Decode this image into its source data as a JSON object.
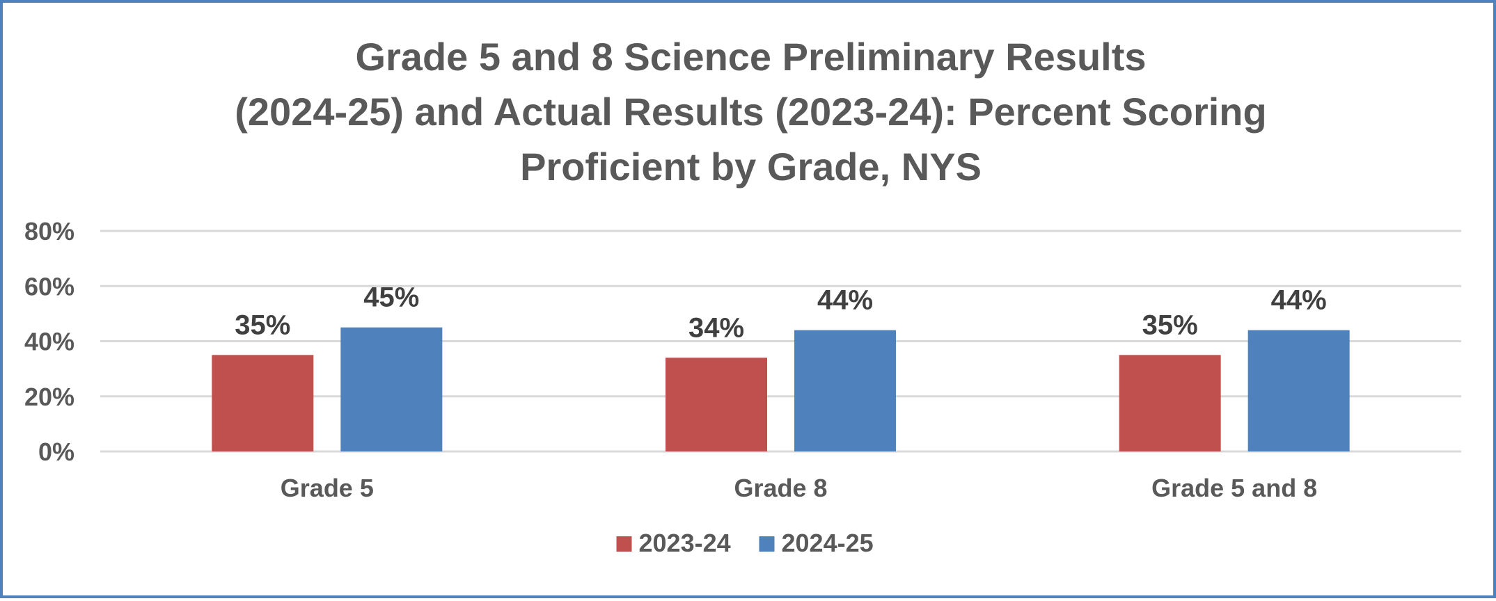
{
  "chart_data": {
    "type": "bar",
    "title_lines": [
      "Grade 5 and 8 Science Preliminary Results",
      "(2024-25) and Actual Results (2023-24): Percent Scoring",
      "Proficient by Grade, NYS"
    ],
    "categories": [
      "Grade 5",
      "Grade 8",
      "Grade 5 and 8"
    ],
    "series": [
      {
        "name": "2023-24",
        "color": "#c0504d",
        "values": [
          35,
          34,
          35
        ],
        "labels": [
          "35%",
          "34%",
          "35%"
        ]
      },
      {
        "name": "2024-25",
        "color": "#4f81bd",
        "values": [
          45,
          44,
          44
        ],
        "labels": [
          "45%",
          "44%",
          "44%"
        ]
      }
    ],
    "yticks": [
      {
        "value": 0,
        "label": "0%"
      },
      {
        "value": 20,
        "label": "20%"
      },
      {
        "value": 40,
        "label": "40%"
      },
      {
        "value": 60,
        "label": "60%"
      },
      {
        "value": 80,
        "label": "80%"
      }
    ],
    "ylim": [
      0,
      80
    ],
    "grid": true,
    "legend_position": "bottom",
    "xlabel": "",
    "ylabel": ""
  }
}
